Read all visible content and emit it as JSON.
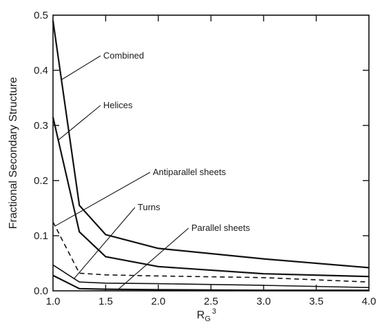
{
  "chart_data": {
    "type": "line",
    "xlabel": "R",
    "xlabel_sub": "G",
    "xlabel_sup": "3",
    "ylabel": "Fractional Secondary Structure",
    "xlim": [
      1.0,
      4.0
    ],
    "ylim": [
      0.0,
      0.5
    ],
    "xticks": [
      "1.0",
      "1.5",
      "2.0",
      "2.5",
      "3.0",
      "3.5",
      "4.0"
    ],
    "yticks": [
      "0.0",
      "0.1",
      "0.2",
      "0.3",
      "0.4",
      "0.5"
    ],
    "grid": false,
    "series": [
      {
        "name": "Combined",
        "style": "solid",
        "width": 2.2,
        "x": [
          1.0,
          1.25,
          1.5,
          2.0,
          3.0,
          4.0
        ],
        "y": [
          0.49,
          0.155,
          0.102,
          0.077,
          0.058,
          0.042
        ]
      },
      {
        "name": "Helices",
        "style": "solid",
        "width": 2.2,
        "x": [
          1.0,
          1.25,
          1.5,
          2.0,
          3.0,
          4.0
        ],
        "y": [
          0.315,
          0.107,
          0.062,
          0.044,
          0.031,
          0.026
        ]
      },
      {
        "name": "Antiparallel sheets",
        "style": "dashed",
        "width": 1.6,
        "x": [
          1.0,
          1.25,
          1.5,
          2.0,
          3.0,
          4.0
        ],
        "y": [
          0.125,
          0.032,
          0.029,
          0.027,
          0.024,
          0.016
        ]
      },
      {
        "name": "Turns",
        "style": "solid",
        "width": 1.6,
        "x": [
          1.0,
          1.25,
          1.5,
          2.0,
          3.0,
          4.0
        ],
        "y": [
          0.047,
          0.016,
          0.014,
          0.013,
          0.01,
          0.006
        ]
      },
      {
        "name": "Parallel sheets",
        "style": "solid",
        "width": 2.2,
        "x": [
          1.0,
          1.25,
          1.5,
          2.0,
          3.0,
          4.0
        ],
        "y": [
          0.028,
          0.004,
          0.003,
          0.002,
          0.001,
          0.001
        ]
      }
    ],
    "annotations": [
      {
        "text": "Combined",
        "series": "Combined",
        "at_x": 1.08
      },
      {
        "text": "Helices",
        "series": "Helices",
        "at_x": 1.05
      },
      {
        "text": "Antiparallel sheets",
        "series": "Antiparallel sheets",
        "at_x": 1.02
      },
      {
        "text": "Turns",
        "series": "Turns",
        "at_x": 1.2
      },
      {
        "text": "Parallel sheets",
        "series": "Parallel sheets",
        "at_x": 1.62
      }
    ]
  }
}
